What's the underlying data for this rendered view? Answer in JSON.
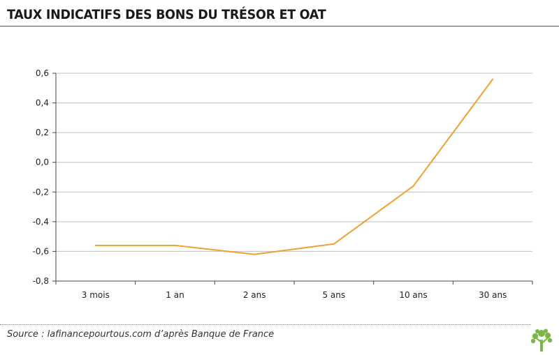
{
  "page": {
    "title": "TAUX INDICATIFS DES BONS DU TRÉSOR ET OAT",
    "source": "Source : lafinancepourtous.com d’après Banque de France",
    "logo_icon": "tree-logo-icon"
  },
  "colors": {
    "line": "#f0a032",
    "grid": "#bfbfbf",
    "axis": "#444444",
    "footer_rule": "#6a9f3a",
    "logo": "#7ab648"
  },
  "chart_data": {
    "type": "line",
    "title": "TAUX INDICATIFS DES BONS DU TRÉSOR ET OAT",
    "xlabel": "",
    "ylabel": "",
    "categories": [
      "3 mois",
      "1 an",
      "2 ans",
      "5 ans",
      "10 ans",
      "30 ans"
    ],
    "series": [
      {
        "values": [
          -0.56,
          -0.56,
          -0.62,
          -0.55,
          -0.16,
          0.56
        ]
      }
    ],
    "ylim": [
      -0.8,
      0.6
    ],
    "yticks": [
      0.6,
      0.4,
      0.2,
      0.0,
      -0.2,
      -0.4,
      -0.6,
      -0.8
    ],
    "ytick_labels": [
      "0,6",
      "0,4",
      "0,2",
      "0,0",
      "-0,2",
      "-0,4",
      "-0,6",
      "-0,8"
    ],
    "grid": true,
    "legend": "none"
  }
}
